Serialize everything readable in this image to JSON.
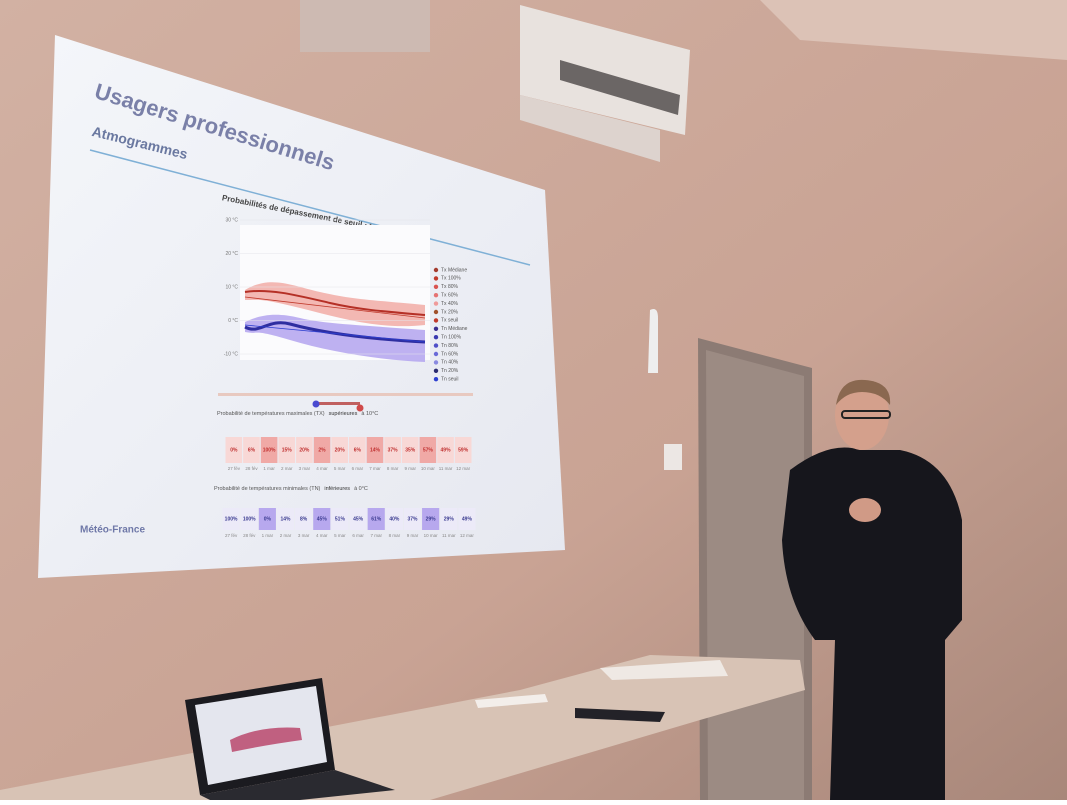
{
  "slide": {
    "title": "Usagers professionnels",
    "subtitle": "Atmogrammes",
    "footer": "Météo-France",
    "chart": {
      "title": "Probabilités de dépassement de seuil : températures",
      "y_labels": [
        "30 °C",
        "20 °C",
        "10 °C",
        "0 °C",
        "-10 °C"
      ],
      "legend": [
        {
          "label": "Tx Médiane",
          "color": "#a33b2e"
        },
        {
          "label": "Tx 100%",
          "color": "#c0392b"
        },
        {
          "label": "Tx 80%",
          "color": "#d9534f"
        },
        {
          "label": "Tx 60%",
          "color": "#e57373"
        },
        {
          "label": "Tx 40%",
          "color": "#ef9a9a"
        },
        {
          "label": "Tx 20%",
          "color": "#a0522d"
        },
        {
          "label": "Tx seuil",
          "color": "#c0392b"
        },
        {
          "label": "Tn Médiane",
          "color": "#3b2e8f"
        },
        {
          "label": "Tn 100%",
          "color": "#3a3ab0"
        },
        {
          "label": "Tn 80%",
          "color": "#4f4fc8"
        },
        {
          "label": "Tn 60%",
          "color": "#6a6ad8"
        },
        {
          "label": "Tn 40%",
          "color": "#8a8ae0"
        },
        {
          "label": "Tn 20%",
          "color": "#2a2a70"
        },
        {
          "label": "Tn seuil",
          "color": "#2d3fd0"
        }
      ]
    },
    "dates": [
      "27 fév",
      "28 fév",
      "1 mar",
      "2 mar",
      "3 mar",
      "4 mar",
      "5 mar",
      "6 mar",
      "7 mar",
      "8 mar",
      "9 mar",
      "10 mar",
      "11 mar",
      "12 mar"
    ],
    "tx_row": {
      "label": "Probabilité de températures maximales (TX)",
      "comparison": "supérieures",
      "threshold": "à 10°C",
      "values": [
        "0%",
        "6%",
        "100%",
        "15%",
        "20%",
        "2%",
        "20%",
        "6%",
        "14%",
        "37%",
        "35%",
        "57%",
        "49%",
        "59%"
      ]
    },
    "tn_row": {
      "label": "Probabilité de températures minimales (TN)",
      "comparison": "inférieures",
      "threshold": "à 0°C",
      "values": [
        "100%",
        "100%",
        "0%",
        "14%",
        "8%",
        "45%",
        "51%",
        "45%",
        "61%",
        "40%",
        "37%",
        "29%",
        "29%",
        "49%"
      ]
    }
  }
}
